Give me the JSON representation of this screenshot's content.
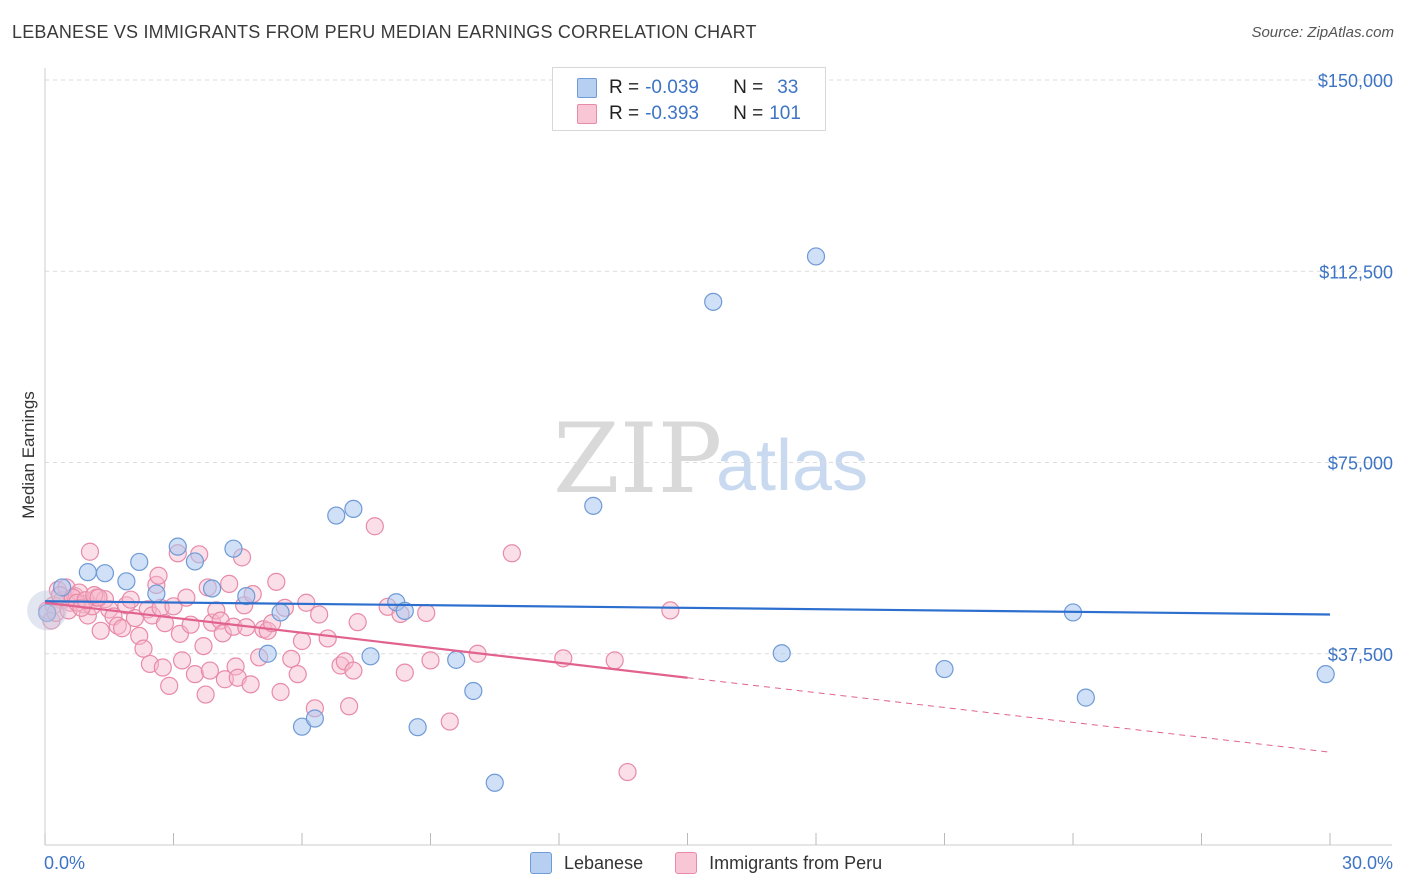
{
  "title": "LEBANESE VS IMMIGRANTS FROM PERU MEDIAN EARNINGS CORRELATION CHART",
  "source": "Source: ZipAtlas.com",
  "watermark": {
    "zip": "ZIP",
    "atlas": "atlas"
  },
  "legend": {
    "r_label": "R =",
    "n_label": "N =",
    "rows": [
      {
        "name": "Lebanese",
        "r": "-0.039",
        "n": "33",
        "color": "#a9c6ef",
        "stroke": "#6f9ad6"
      },
      {
        "name": "Immigrants from Peru",
        "r": "-0.393",
        "n": "101",
        "color": "#f6b8cb",
        "stroke": "#e88aa8"
      }
    ]
  },
  "chart_data": {
    "type": "scatter",
    "title": "LEBANESE VS IMMIGRANTS FROM PERU MEDIAN EARNINGS CORRELATION CHART",
    "xlabel": "",
    "ylabel": "Median Earnings",
    "xlim": [
      0,
      30
    ],
    "ylim": [
      0,
      150000
    ],
    "x_tick_labels": [
      "0.0%",
      "30.0%"
    ],
    "y_ticks": [
      37500,
      75000,
      112500,
      150000
    ],
    "y_tick_labels": [
      "$37,500",
      "$75,000",
      "$112,500",
      "$150,000"
    ],
    "series": [
      {
        "name": "Lebanese",
        "color": "#a9c6ef",
        "line_color": "#2d6fce",
        "trend": {
          "x0": 0,
          "y0": 47800,
          "x1": 30,
          "y1": 45200
        },
        "points": [
          [
            0.05,
            45500
          ],
          [
            0.4,
            50500
          ],
          [
            1.0,
            53500
          ],
          [
            1.4,
            53300
          ],
          [
            1.9,
            51700
          ],
          [
            2.2,
            55500
          ],
          [
            2.6,
            49300
          ],
          [
            3.1,
            58500
          ],
          [
            3.5,
            55600
          ],
          [
            3.9,
            50300
          ],
          [
            4.4,
            58100
          ],
          [
            4.7,
            48800
          ],
          [
            5.2,
            37500
          ],
          [
            5.5,
            45600
          ],
          [
            6.0,
            23200
          ],
          [
            6.3,
            24800
          ],
          [
            6.8,
            64600
          ],
          [
            7.2,
            65900
          ],
          [
            7.6,
            37000
          ],
          [
            8.2,
            47600
          ],
          [
            8.4,
            45900
          ],
          [
            8.7,
            23100
          ],
          [
            9.6,
            36300
          ],
          [
            10.0,
            30200
          ],
          [
            10.5,
            12200
          ],
          [
            12.8,
            66500
          ],
          [
            15.6,
            106500
          ],
          [
            17.2,
            37600
          ],
          [
            18.0,
            115400
          ],
          [
            21.0,
            34500
          ],
          [
            24.0,
            45600
          ],
          [
            24.3,
            28900
          ],
          [
            29.9,
            33500
          ]
        ]
      },
      {
        "name": "Immigrants from Peru",
        "color": "#f6b8cb",
        "line_color": "#e2628f",
        "trend": {
          "x0": 0,
          "y0": 47500,
          "x1": 15,
          "y1": 32800
        },
        "trend_dashed": {
          "x0": 15,
          "y0": 32800,
          "x1": 30,
          "y1": 18200
        },
        "points": [
          [
            0.05,
            46000
          ],
          [
            0.2,
            47000
          ],
          [
            0.3,
            50000
          ],
          [
            0.4,
            48000
          ],
          [
            0.5,
            50500
          ],
          [
            0.6,
            47500
          ],
          [
            0.7,
            48800
          ],
          [
            0.8,
            49500
          ],
          [
            0.9,
            47200
          ],
          [
            1.0,
            45000
          ],
          [
            1.05,
            57500
          ],
          [
            1.1,
            46800
          ],
          [
            1.2,
            48500
          ],
          [
            1.3,
            42000
          ],
          [
            1.4,
            48200
          ],
          [
            1.5,
            46200
          ],
          [
            1.6,
            44800
          ],
          [
            1.7,
            43000
          ],
          [
            1.8,
            42500
          ],
          [
            1.9,
            47000
          ],
          [
            2.0,
            48100
          ],
          [
            2.1,
            44500
          ],
          [
            2.2,
            41000
          ],
          [
            2.3,
            38500
          ],
          [
            2.4,
            46200
          ],
          [
            2.45,
            35500
          ],
          [
            2.5,
            45000
          ],
          [
            2.6,
            51000
          ],
          [
            2.65,
            52800
          ],
          [
            2.7,
            46500
          ],
          [
            2.75,
            34800
          ],
          [
            2.8,
            43500
          ],
          [
            2.9,
            31200
          ],
          [
            3.0,
            46800
          ],
          [
            3.1,
            57200
          ],
          [
            3.15,
            41400
          ],
          [
            3.2,
            36200
          ],
          [
            3.3,
            48500
          ],
          [
            3.4,
            43200
          ],
          [
            3.5,
            33500
          ],
          [
            3.6,
            57000
          ],
          [
            3.7,
            39000
          ],
          [
            3.75,
            29500
          ],
          [
            3.8,
            50500
          ],
          [
            3.85,
            34200
          ],
          [
            3.9,
            43600
          ],
          [
            4.0,
            46000
          ],
          [
            4.1,
            44000
          ],
          [
            4.15,
            41500
          ],
          [
            4.2,
            32500
          ],
          [
            4.3,
            51200
          ],
          [
            4.4,
            42800
          ],
          [
            4.45,
            35000
          ],
          [
            4.5,
            32800
          ],
          [
            4.6,
            56400
          ],
          [
            4.65,
            47000
          ],
          [
            4.7,
            42700
          ],
          [
            4.8,
            31500
          ],
          [
            4.85,
            49200
          ],
          [
            5.0,
            36800
          ],
          [
            5.1,
            42300
          ],
          [
            5.2,
            42000
          ],
          [
            5.3,
            43500
          ],
          [
            5.4,
            51600
          ],
          [
            5.5,
            30000
          ],
          [
            5.6,
            46500
          ],
          [
            5.75,
            36500
          ],
          [
            5.9,
            33500
          ],
          [
            6.0,
            40000
          ],
          [
            6.1,
            47500
          ],
          [
            6.3,
            26800
          ],
          [
            6.4,
            45200
          ],
          [
            6.6,
            40500
          ],
          [
            6.9,
            35200
          ],
          [
            7.0,
            36000
          ],
          [
            7.1,
            27200
          ],
          [
            7.2,
            34200
          ],
          [
            7.3,
            43700
          ],
          [
            7.7,
            62500
          ],
          [
            8.0,
            46700
          ],
          [
            8.3,
            45300
          ],
          [
            8.4,
            33800
          ],
          [
            8.9,
            45500
          ],
          [
            9.0,
            36200
          ],
          [
            9.45,
            24200
          ],
          [
            10.1,
            37500
          ],
          [
            10.9,
            57200
          ],
          [
            12.1,
            36600
          ],
          [
            13.3,
            36200
          ],
          [
            13.6,
            14300
          ],
          [
            14.6,
            46000
          ],
          [
            0.15,
            44000
          ],
          [
            0.25,
            45500
          ],
          [
            0.35,
            49000
          ],
          [
            0.55,
            46000
          ],
          [
            0.65,
            48500
          ],
          [
            0.75,
            47500
          ],
          [
            0.85,
            46500
          ],
          [
            0.95,
            48000
          ],
          [
            1.15,
            49000
          ],
          [
            1.25,
            48500
          ]
        ]
      }
    ]
  }
}
